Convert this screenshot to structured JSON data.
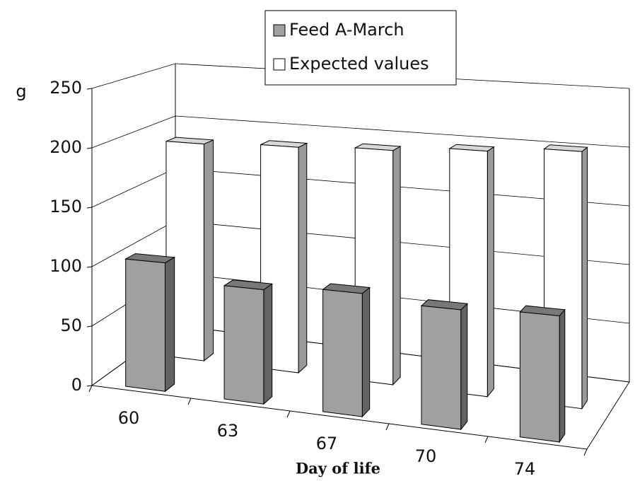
{
  "chart_data": {
    "type": "bar3d",
    "x_label": "Day of life",
    "y_label": "g",
    "categories": [
      "60",
      "63",
      "67",
      "70",
      "74"
    ],
    "series": [
      {
        "name": "Feed A-March",
        "color": "#a0a0a0",
        "values": [
          107,
          93,
          98,
          93,
          96
        ]
      },
      {
        "name": "Expected values",
        "color": "#ffffff",
        "values": [
          192,
          195,
          198,
          203,
          208
        ]
      }
    ],
    "ylim": [
      0,
      250
    ],
    "yticks": [
      0,
      50,
      100,
      150,
      200,
      250
    ],
    "grid": true,
    "legend": "top"
  }
}
